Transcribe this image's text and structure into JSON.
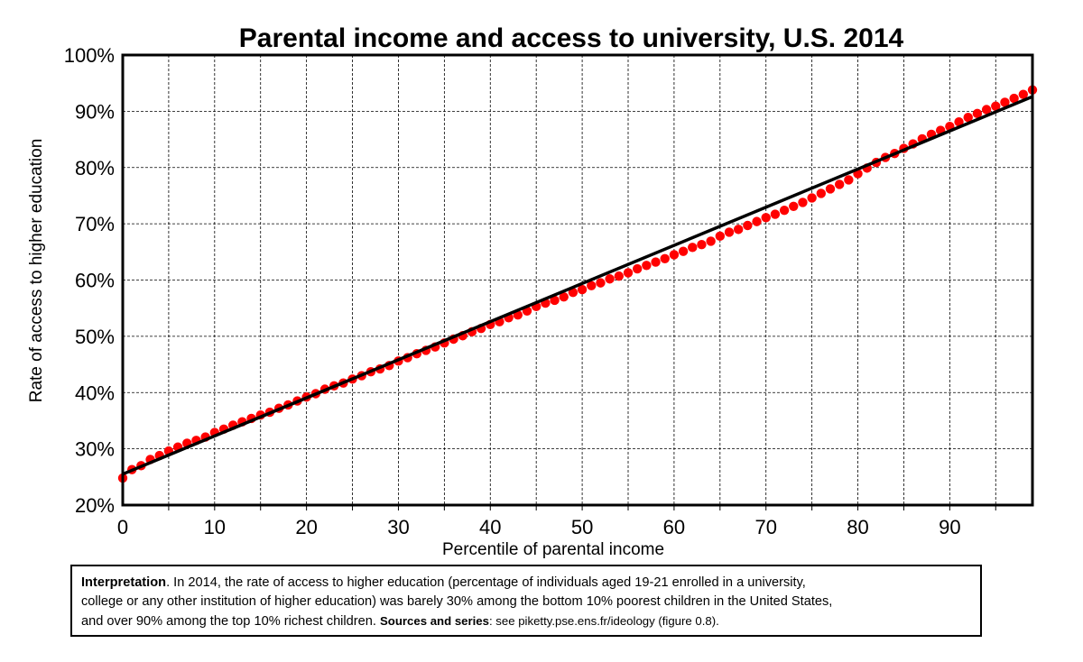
{
  "chart_data": {
    "type": "scatter",
    "title": "Parental income and access to university, U.S. 2014",
    "xlabel": "Percentile of parental income",
    "ylabel": "Rate of access to higher education",
    "xlim": [
      0,
      99
    ],
    "ylim": [
      20,
      100
    ],
    "x_ticks": [
      0,
      10,
      20,
      30,
      40,
      50,
      60,
      70,
      80,
      90
    ],
    "x_tick_labels": [
      "0",
      "10",
      "20",
      "30",
      "40",
      "50",
      "60",
      "70",
      "80",
      "90"
    ],
    "x_minor_step": 5,
    "y_ticks": [
      20,
      30,
      40,
      50,
      60,
      70,
      80,
      90,
      100
    ],
    "y_tick_labels": [
      "20%",
      "30%",
      "40%",
      "50%",
      "60%",
      "70%",
      "80%",
      "90%",
      "100%"
    ],
    "grid": true,
    "legend": "none",
    "series": [
      {
        "style": "markers",
        "color": "#ff0000",
        "x": [
          0,
          1,
          2,
          3,
          4,
          5,
          6,
          7,
          8,
          9,
          10,
          11,
          12,
          13,
          14,
          15,
          16,
          17,
          18,
          19,
          20,
          21,
          22,
          23,
          24,
          25,
          26,
          27,
          28,
          29,
          30,
          31,
          32,
          33,
          34,
          35,
          36,
          37,
          38,
          39,
          40,
          41,
          42,
          43,
          44,
          45,
          46,
          47,
          48,
          49,
          50,
          51,
          52,
          53,
          54,
          55,
          56,
          57,
          58,
          59,
          60,
          61,
          62,
          63,
          64,
          65,
          66,
          67,
          68,
          69,
          70,
          71,
          72,
          73,
          74,
          75,
          76,
          77,
          78,
          79,
          80,
          81,
          82,
          83,
          84,
          85,
          86,
          87,
          88,
          89,
          90,
          91,
          92,
          93,
          94,
          95,
          96,
          97,
          98,
          99
        ],
        "y": [
          24.8,
          26.3,
          27.0,
          28.1,
          28.8,
          29.6,
          30.3,
          31.0,
          31.5,
          32.1,
          32.9,
          33.5,
          34.2,
          34.8,
          35.4,
          36.0,
          36.5,
          37.2,
          37.8,
          38.5,
          39.2,
          39.8,
          40.6,
          41.2,
          41.7,
          42.4,
          43.0,
          43.7,
          44.2,
          44.8,
          45.6,
          46.2,
          46.9,
          47.5,
          48.1,
          48.8,
          49.5,
          50.1,
          50.8,
          51.4,
          52.1,
          52.6,
          53.3,
          53.8,
          54.5,
          55.3,
          55.9,
          56.4,
          57.0,
          57.8,
          58.3,
          59.0,
          59.5,
          60.2,
          60.7,
          61.3,
          62.0,
          62.6,
          63.2,
          63.8,
          64.5,
          65.1,
          65.8,
          66.3,
          66.9,
          67.8,
          68.5,
          69.0,
          69.7,
          70.4,
          71.1,
          71.7,
          72.4,
          73.1,
          73.8,
          74.6,
          75.4,
          76.2,
          77.0,
          77.8,
          78.9,
          79.9,
          80.9,
          81.8,
          82.5,
          83.4,
          84.2,
          85.1,
          85.9,
          86.6,
          87.3,
          88.1,
          88.9,
          89.6,
          90.3,
          90.9,
          91.6,
          92.3,
          93.0,
          93.8
        ]
      },
      {
        "style": "line",
        "color": "#000000",
        "x": [
          0,
          99
        ],
        "y": [
          25.5,
          92.6
        ]
      }
    ]
  },
  "note": {
    "line1_bold": "Interpretation",
    "line1_rest": ". In 2014, the rate of access to higher education (percentage of individuals aged 19-21 enrolled in a university,",
    "line2": "college or any other institution of higher education) was barely 30% among the bottom 10% poorest children in the United States,",
    "line3_rest": "and over 90% among the top 10% richest children.  ",
    "sources_bold": "Sources and series",
    "sources_rest": ": see piketty.pse.ens.fr/ideology (figure 0.8)."
  }
}
